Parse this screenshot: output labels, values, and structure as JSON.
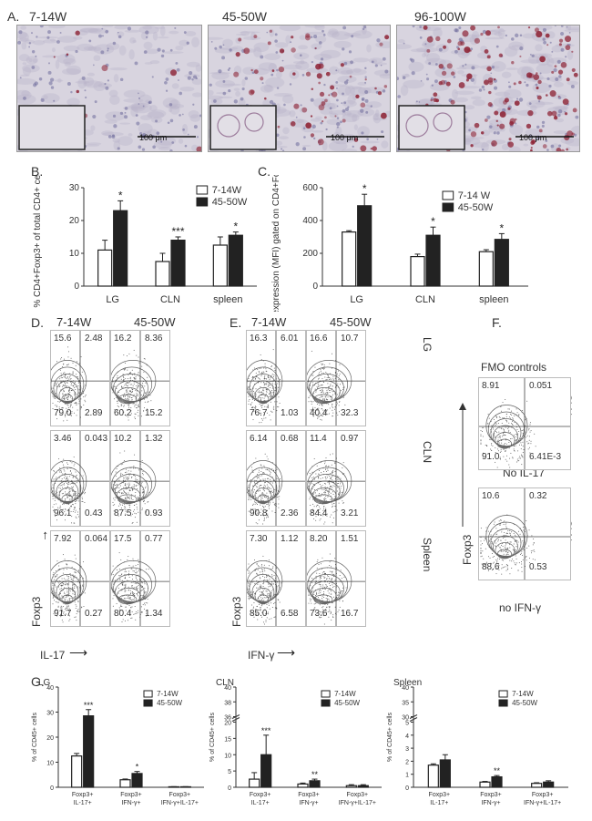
{
  "panelA": {
    "label": "A.",
    "images": [
      {
        "title": "7-14W",
        "scale": "100 μm",
        "inset_scale": "100 μm",
        "density": 0.05
      },
      {
        "title": "45-50W",
        "scale": "100 μm",
        "inset_scale": "100 μm",
        "density": 0.45
      },
      {
        "title": "96-100W",
        "scale": "100 μm",
        "inset_scale": "100 μm",
        "density": 0.8
      }
    ]
  },
  "panelB": {
    "label": "B."
  },
  "panelC": {
    "label": "C."
  },
  "panelD": {
    "label": "D.",
    "col1": "7-14W",
    "col2": "45-50W",
    "yaxis": "Foxp3",
    "xaxis": "IL-17",
    "arrow_up": "→",
    "arrow_right": "⟶"
  },
  "panelE": {
    "label": "E.",
    "col1": "7-14W",
    "col2": "45-50W",
    "yaxis": "Foxp3",
    "xaxis": "IFN-γ",
    "arrow_up": "→",
    "arrow_right": "⟶",
    "rows": [
      "LG",
      "CLN",
      "Spleen"
    ]
  },
  "panelF": {
    "label": "F.",
    "title": "FMO controls",
    "sub1": "No IL-17",
    "sub2": "no IFN-γ",
    "yaxis": "Foxp3",
    "row_label": "CLN"
  },
  "panelG": {
    "label": "G."
  },
  "flow": {
    "D": [
      [
        [
          "15.6",
          "2.48",
          "79.0",
          "2.89"
        ],
        [
          "16.2",
          "8.36",
          "60.2",
          "15.2"
        ]
      ],
      [
        [
          "3.46",
          "0.043",
          "96.1",
          "0.43"
        ],
        [
          "10.2",
          "1.32",
          "87.5",
          "0.93"
        ]
      ],
      [
        [
          "7.92",
          "0.064",
          "91.7",
          "0.27"
        ],
        [
          "17.5",
          "0.77",
          "80.4",
          "1.34"
        ]
      ]
    ],
    "E": [
      [
        [
          "16.3",
          "6.01",
          "76.7",
          "1.03"
        ],
        [
          "16.6",
          "10.7",
          "40.4",
          "32.3"
        ]
      ],
      [
        [
          "6.14",
          "0.68",
          "90.8",
          "2.36"
        ],
        [
          "11.4",
          "0.97",
          "84.4",
          "3.21"
        ]
      ],
      [
        [
          "7.30",
          "1.12",
          "85.0",
          "6.58"
        ],
        [
          "8.20",
          "1.51",
          "73.6",
          "16.7"
        ]
      ]
    ],
    "F": [
      [
        "8.91",
        "0.051",
        "91.0",
        "6.41E-3"
      ],
      [
        "10.6",
        "0.32",
        "88.6",
        "0.53"
      ]
    ]
  },
  "chart_data": [
    {
      "id": "B",
      "type": "bar",
      "categories": [
        "LG",
        "CLN",
        "spleen"
      ],
      "series": [
        {
          "name": "7-14W",
          "values": [
            11,
            7.5,
            12.5
          ],
          "errors": [
            3,
            2.5,
            2.5
          ],
          "color": "#ffffff"
        },
        {
          "name": "45-50W",
          "values": [
            23,
            14,
            15.5
          ],
          "errors": [
            3,
            1,
            1
          ],
          "color": "#222222"
        }
      ],
      "significance": [
        "*",
        "***",
        "*"
      ],
      "ylabel": "% CD4+Foxp3+ of total CD4+ cells",
      "ylim": [
        0,
        30
      ],
      "yticks": [
        0,
        10,
        20,
        30
      ]
    },
    {
      "id": "C",
      "type": "bar",
      "categories": [
        "LG",
        "CLN",
        "spleen"
      ],
      "series": [
        {
          "name": "7-14 W",
          "values": [
            330,
            180,
            210
          ],
          "errors": [
            8,
            15,
            12
          ],
          "color": "#ffffff"
        },
        {
          "name": "45-50W",
          "values": [
            490,
            310,
            285
          ],
          "errors": [
            70,
            50,
            35
          ],
          "color": "#222222"
        }
      ],
      "significance": [
        "*",
        "*",
        "*"
      ],
      "ylabel": "Foxp3 expression (MFI) gated on CD4+Foxp3+ cells",
      "ylim": [
        0,
        600
      ],
      "yticks": [
        0,
        200,
        400,
        600
      ]
    },
    {
      "id": "G1",
      "type": "bar",
      "title": "LG",
      "categories": [
        "Foxp3+ IL-17+",
        "Foxp3+ IFN-γ+",
        "Foxp3+ IFN-γ+IL-17+"
      ],
      "series": [
        {
          "name": "7-14W",
          "values": [
            12.5,
            3,
            0.2
          ],
          "errors": [
            1,
            0.3,
            0.05
          ],
          "color": "#ffffff"
        },
        {
          "name": "45-50W",
          "values": [
            28.5,
            5.5,
            0.2
          ],
          "errors": [
            2.5,
            0.8,
            0.05
          ],
          "color": "#222222"
        }
      ],
      "significance": [
        "***",
        "*",
        ""
      ],
      "ylabel": "% of CD45+ cells",
      "ylim": [
        0,
        40
      ],
      "yticks": [
        0,
        10,
        20,
        30,
        40
      ]
    },
    {
      "id": "G2",
      "type": "bar",
      "title": "CLN",
      "categories": [
        "Foxp3+ IL-17+",
        "Foxp3+ IFN-γ+",
        "Foxp3+ IFN-γ+IL-17+"
      ],
      "series": [
        {
          "name": "7-14W",
          "values": [
            2.5,
            1,
            0.5
          ],
          "errors": [
            2,
            0.3,
            0.3
          ],
          "color": "#ffffff"
        },
        {
          "name": "45-50W",
          "values": [
            10,
            2,
            0.5
          ],
          "errors": [
            6,
            0.5,
            0.3
          ],
          "color": "#222222"
        }
      ],
      "significance": [
        "***",
        "**",
        ""
      ],
      "ylabel": "% of CD45+ cells",
      "ylim": [
        0,
        40
      ],
      "yticks": [
        0,
        5,
        10,
        15,
        20,
        36,
        38,
        40
      ],
      "broken_axis": [
        20,
        36
      ]
    },
    {
      "id": "G3",
      "type": "bar",
      "title": "Spleen",
      "categories": [
        "Foxp3+ IL-17+",
        "Foxp3+ IFN-γ+",
        "Foxp3+ IFN-γ+IL-17+"
      ],
      "series": [
        {
          "name": "7-14W",
          "values": [
            1.7,
            0.4,
            0.3
          ],
          "errors": [
            0.1,
            0.05,
            0.05
          ],
          "color": "#ffffff"
        },
        {
          "name": "45-50W",
          "values": [
            2.1,
            0.8,
            0.4
          ],
          "errors": [
            0.4,
            0.1,
            0.1
          ],
          "color": "#222222"
        }
      ],
      "significance": [
        "",
        "**",
        ""
      ],
      "ylabel": "% of CD45+ cells",
      "ylim": [
        0,
        40
      ],
      "yticks": [
        0,
        1,
        2,
        3,
        4,
        5,
        30,
        35,
        40
      ],
      "broken_axis": [
        5,
        30
      ]
    }
  ]
}
